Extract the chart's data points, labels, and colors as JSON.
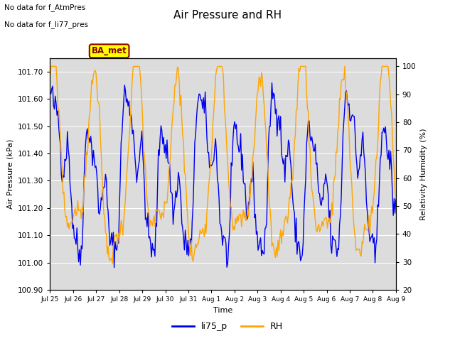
{
  "title": "Air Pressure and RH",
  "xlabel": "Time",
  "ylabel_left": "Air Pressure (kPa)",
  "ylabel_right": "Relativity Humidity (%)",
  "ylim_left": [
    100.9,
    101.75
  ],
  "ylim_right": [
    20,
    103
  ],
  "yticks_left": [
    100.9,
    101.0,
    101.1,
    101.2,
    101.3,
    101.4,
    101.5,
    101.6,
    101.7
  ],
  "yticks_right": [
    20,
    30,
    40,
    50,
    60,
    70,
    80,
    90,
    100
  ],
  "x_tick_labels": [
    "Jul 25",
    "Jul 26",
    "Jul 27",
    "Jul 28",
    "Jul 29",
    "Jul 30",
    "Jul 31",
    "Aug 1",
    "Aug 2",
    "Aug 3",
    "Aug 4",
    "Aug 5",
    "Aug 6",
    "Aug 7",
    "Aug 8",
    "Aug 9"
  ],
  "text_no_data": [
    "No data for f_AtmPres",
    "No data for f_li77_pres"
  ],
  "ba_met_label": "BA_met",
  "legend_items": [
    "li75_p",
    "RH"
  ],
  "line_color_blue": "#0000EE",
  "line_color_orange": "#FFA500",
  "bg_color": "#DCDCDC",
  "fig_bg": "#FFFFFF",
  "n_points": 400,
  "seed": 42
}
